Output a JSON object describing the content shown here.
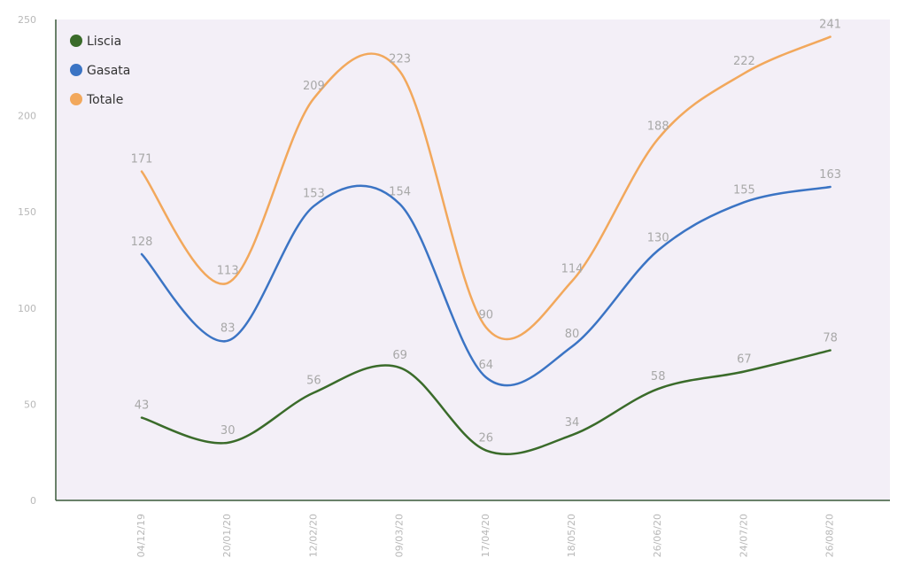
{
  "chart_data": {
    "type": "line",
    "title": "",
    "xlabel": "",
    "ylabel": "",
    "categories": [
      "04/12/19",
      "20/01/20",
      "12/02/20",
      "09/03/20",
      "17/04/20",
      "18/05/20",
      "26/06/20",
      "24/07/20",
      "26/08/20"
    ],
    "ylim": [
      0,
      250
    ],
    "yticks": [
      0,
      50,
      100,
      150,
      200,
      250
    ],
    "grid": false,
    "smooth": true,
    "legend_position": "top-left",
    "series": [
      {
        "name": "Liscia",
        "color": "#3a6b2a",
        "values": [
          43,
          30,
          56,
          69,
          26,
          34,
          58,
          67,
          78
        ]
      },
      {
        "name": "Gasata",
        "color": "#3b74c4",
        "values": [
          128,
          83,
          153,
          154,
          64,
          80,
          130,
          155,
          163
        ]
      },
      {
        "name": "Totale",
        "color": "#f2a85c",
        "values": [
          171,
          113,
          209,
          223,
          90,
          114,
          188,
          222,
          241
        ]
      }
    ],
    "colors": {
      "plot_bg": "#f3eff7",
      "axis": "#3a5a3a"
    }
  }
}
